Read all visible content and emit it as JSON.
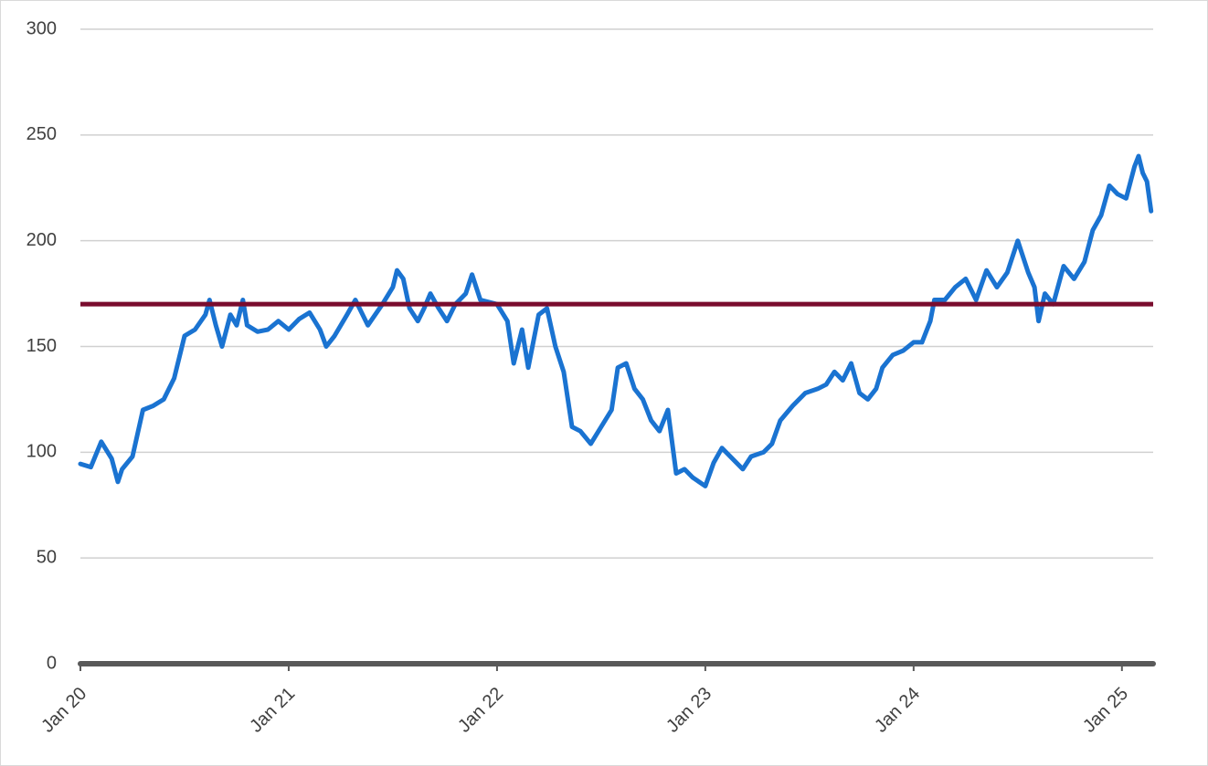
{
  "chart_data": {
    "type": "line",
    "x": [
      2020.0,
      2020.05,
      2020.1,
      2020.15,
      2020.18,
      2020.2,
      2020.25,
      2020.3,
      2020.35,
      2020.4,
      2020.45,
      2020.5,
      2020.55,
      2020.6,
      2020.62,
      2020.65,
      2020.68,
      2020.72,
      2020.75,
      2020.78,
      2020.8,
      2020.85,
      2020.9,
      2020.95,
      2021.0,
      2021.05,
      2021.1,
      2021.15,
      2021.18,
      2021.22,
      2021.28,
      2021.32,
      2021.38,
      2021.45,
      2021.5,
      2021.52,
      2021.55,
      2021.58,
      2021.62,
      2021.65,
      2021.68,
      2021.72,
      2021.76,
      2021.8,
      2021.85,
      2021.88,
      2021.92,
      2022.0,
      2022.05,
      2022.08,
      2022.12,
      2022.15,
      2022.2,
      2022.24,
      2022.28,
      2022.32,
      2022.36,
      2022.4,
      2022.45,
      2022.5,
      2022.55,
      2022.58,
      2022.62,
      2022.66,
      2022.7,
      2022.74,
      2022.78,
      2022.82,
      2022.86,
      2022.9,
      2022.94,
      2023.0,
      2023.04,
      2023.08,
      2023.12,
      2023.18,
      2023.22,
      2023.28,
      2023.32,
      2023.36,
      2023.42,
      2023.48,
      2023.54,
      2023.58,
      2023.62,
      2023.66,
      2023.7,
      2023.74,
      2023.78,
      2023.82,
      2023.85,
      2023.9,
      2023.95,
      2024.0,
      2024.04,
      2024.08,
      2024.1,
      2024.15,
      2024.2,
      2024.25,
      2024.3,
      2024.35,
      2024.4,
      2024.45,
      2024.5,
      2024.55,
      2024.58,
      2024.6,
      2024.63,
      2024.67,
      2024.72,
      2024.77,
      2024.82,
      2024.86,
      2024.9,
      2024.94,
      2024.98,
      2025.02,
      2025.06,
      2025.08,
      2025.1,
      2025.12,
      2025.14
    ],
    "values": [
      94.5,
      93,
      105,
      97,
      86,
      92,
      98,
      120,
      122,
      125,
      135,
      155,
      158,
      165,
      172,
      160,
      150,
      165,
      160,
      172,
      160,
      157,
      158,
      162,
      158,
      163,
      166,
      158,
      150,
      155,
      165,
      172,
      160,
      170,
      178,
      186,
      182,
      168,
      162,
      168,
      175,
      168,
      162,
      170,
      175,
      184,
      172,
      170,
      162,
      142,
      158,
      140,
      165,
      168,
      150,
      138,
      112,
      110,
      104,
      112,
      120,
      140,
      142,
      130,
      125,
      115,
      110,
      120,
      90,
      92,
      88,
      84,
      95,
      102,
      98,
      92,
      98,
      100,
      104,
      115,
      122,
      128,
      130,
      132,
      138,
      134,
      142,
      128,
      125,
      130,
      140,
      146,
      148,
      152,
      152,
      162,
      172,
      172,
      178,
      182,
      172,
      186,
      178,
      185,
      200,
      185,
      178,
      162,
      175,
      170,
      188,
      182,
      190,
      205,
      212,
      226,
      222,
      220,
      235,
      240,
      232,
      228,
      214
    ],
    "color": "#1a73d1",
    "reference_lines": [
      {
        "value": 170,
        "color": "#7a0c2e"
      }
    ],
    "xlim": [
      2020,
      2025.15
    ],
    "xticks": [
      {
        "value": 2020,
        "label": "Jan 20"
      },
      {
        "value": 2021,
        "label": "Jan 21"
      },
      {
        "value": 2022,
        "label": "Jan 22"
      },
      {
        "value": 2023,
        "label": "Jan 23"
      },
      {
        "value": 2024,
        "label": "Jan 24"
      },
      {
        "value": 2025,
        "label": "Jan 25"
      }
    ],
    "ylim": [
      0,
      300
    ],
    "yticks": [
      0,
      50,
      100,
      150,
      200,
      250,
      300
    ],
    "grid": true
  }
}
